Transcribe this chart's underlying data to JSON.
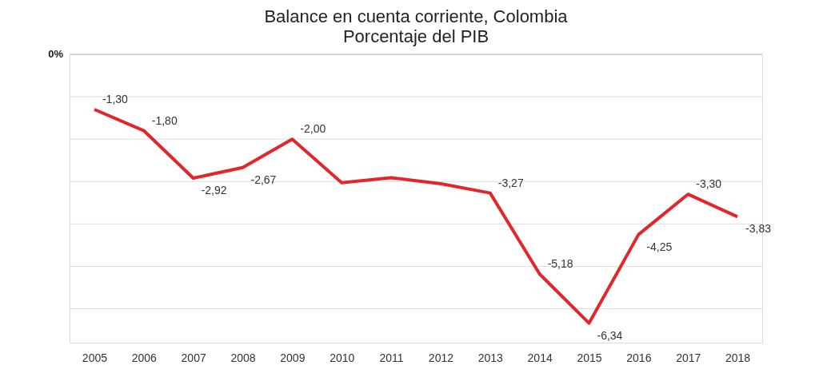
{
  "chart_data": {
    "type": "line",
    "title": "Balance en cuenta corriente, Colombia",
    "subtitle": "Porcentaje del PIB",
    "categories": [
      "2005",
      "2006",
      "2007",
      "2008",
      "2009",
      "2010",
      "2011",
      "2012",
      "2013",
      "2014",
      "2015",
      "2016",
      "2017",
      "2018"
    ],
    "series": [
      {
        "color": "#e3262a",
        "values": [
          -1.3,
          -1.8,
          -2.92,
          -2.67,
          -2.0,
          -3.03,
          -2.91,
          -3.05,
          -3.27,
          -5.18,
          -6.34,
          -4.25,
          -3.3,
          -3.83
        ],
        "value_labels": [
          "-1,30",
          "-1,80",
          "-2,92",
          "-2,67",
          "-2,00",
          null,
          null,
          null,
          "-3,27",
          "-5,18",
          "-6,34",
          "-4,25",
          "-3,30",
          "-3,83"
        ]
      }
    ],
    "ylim": [
      -6.8,
      0
    ],
    "annotations": [
      "0%"
    ],
    "ref_lines": [
      {
        "axis": "y",
        "value": 0,
        "color": "#bbbbbb"
      },
      {
        "axis": "y",
        "value": -1,
        "color": "#dddddd"
      },
      {
        "axis": "y",
        "value": -2,
        "color": "#dddddd"
      },
      {
        "axis": "y",
        "value": -3,
        "color": "#dddddd"
      },
      {
        "axis": "y",
        "value": -4,
        "color": "#dddddd"
      },
      {
        "axis": "y",
        "value": -5,
        "color": "#dddddd"
      },
      {
        "axis": "y",
        "value": -6,
        "color": "#dddddd"
      }
    ],
    "marker": "none",
    "line_style": "solid"
  }
}
